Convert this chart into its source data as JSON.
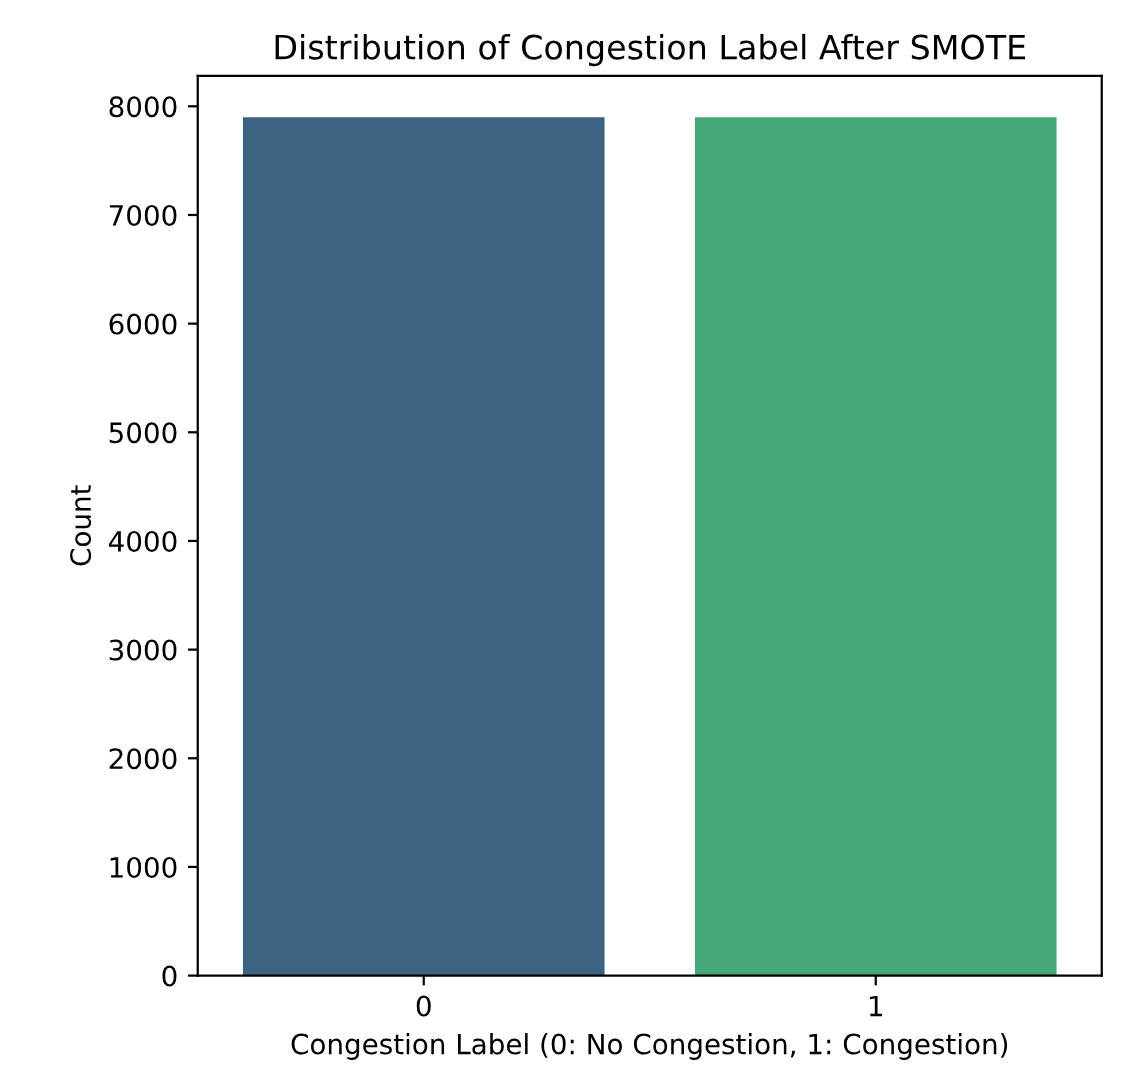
{
  "chart_data": {
    "type": "bar",
    "title": "Distribution of Congestion Label After SMOTE",
    "xlabel": "Congestion Label (0: No Congestion, 1: Congestion)",
    "ylabel": "Count",
    "categories": [
      "0",
      "1"
    ],
    "values": [
      7900,
      7900
    ],
    "colors": [
      "#3b6281",
      "#45a878"
    ],
    "ylim": [
      0,
      8280
    ],
    "yticks": [
      0,
      1000,
      2000,
      3000,
      4000,
      5000,
      6000,
      7000,
      8000
    ],
    "grid": false,
    "legend": false
  }
}
